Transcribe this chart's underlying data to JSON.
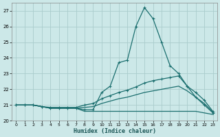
{
  "title": "",
  "xlabel": "Humidex (Indice chaleur)",
  "xlim": [
    -0.5,
    23.5
  ],
  "ylim": [
    20,
    27.5
  ],
  "yticks": [
    20,
    21,
    22,
    23,
    24,
    25,
    26,
    27
  ],
  "xticks": [
    0,
    1,
    2,
    3,
    4,
    5,
    6,
    7,
    8,
    9,
    10,
    11,
    12,
    13,
    14,
    15,
    16,
    17,
    18,
    19,
    20,
    21,
    22,
    23
  ],
  "bg_color": "#cce8e8",
  "grid_color": "#aacccc",
  "line_color": "#1a6e6e",
  "lines": [
    {
      "x": [
        0,
        1,
        2,
        3,
        4,
        5,
        6,
        7,
        8,
        9,
        10,
        11,
        12,
        13,
        14,
        15,
        16,
        17,
        18,
        19,
        20,
        21,
        22,
        23
      ],
      "y": [
        21.0,
        21.0,
        21.0,
        20.9,
        20.8,
        20.8,
        20.8,
        20.8,
        20.7,
        20.7,
        21.8,
        22.2,
        23.7,
        23.85,
        26.0,
        27.2,
        26.5,
        25.0,
        23.5,
        23.0,
        22.2,
        21.5,
        21.0,
        20.5
      ],
      "marker": true
    },
    {
      "x": [
        0,
        1,
        2,
        3,
        4,
        5,
        6,
        7,
        8,
        9,
        10,
        11,
        12,
        13,
        14,
        15,
        16,
        17,
        18,
        19,
        20,
        21,
        22,
        23
      ],
      "y": [
        21.0,
        21.0,
        21.0,
        20.9,
        20.85,
        20.85,
        20.85,
        20.85,
        21.0,
        21.1,
        21.4,
        21.6,
        21.8,
        21.95,
        22.15,
        22.4,
        22.55,
        22.65,
        22.75,
        22.85,
        22.2,
        21.8,
        21.3,
        20.6
      ],
      "marker": true
    },
    {
      "x": [
        0,
        1,
        2,
        3,
        4,
        5,
        6,
        7,
        8,
        9,
        10,
        11,
        12,
        13,
        14,
        15,
        16,
        17,
        18,
        19,
        20,
        21,
        22,
        23
      ],
      "y": [
        21.0,
        21.0,
        21.0,
        20.9,
        20.8,
        20.8,
        20.8,
        20.8,
        20.85,
        20.9,
        21.1,
        21.25,
        21.4,
        21.5,
        21.65,
        21.8,
        21.9,
        22.0,
        22.1,
        22.2,
        21.9,
        21.5,
        21.1,
        20.55
      ],
      "marker": false
    },
    {
      "x": [
        0,
        1,
        2,
        3,
        4,
        5,
        6,
        7,
        8,
        9,
        10,
        11,
        12,
        13,
        14,
        15,
        16,
        17,
        18,
        19,
        20,
        21,
        22,
        23
      ],
      "y": [
        21.0,
        21.0,
        21.0,
        20.9,
        20.8,
        20.8,
        20.8,
        20.8,
        20.6,
        20.6,
        20.6,
        20.6,
        20.6,
        20.6,
        20.6,
        20.6,
        20.6,
        20.6,
        20.6,
        20.6,
        20.6,
        20.6,
        20.5,
        20.4
      ],
      "marker": false
    }
  ]
}
